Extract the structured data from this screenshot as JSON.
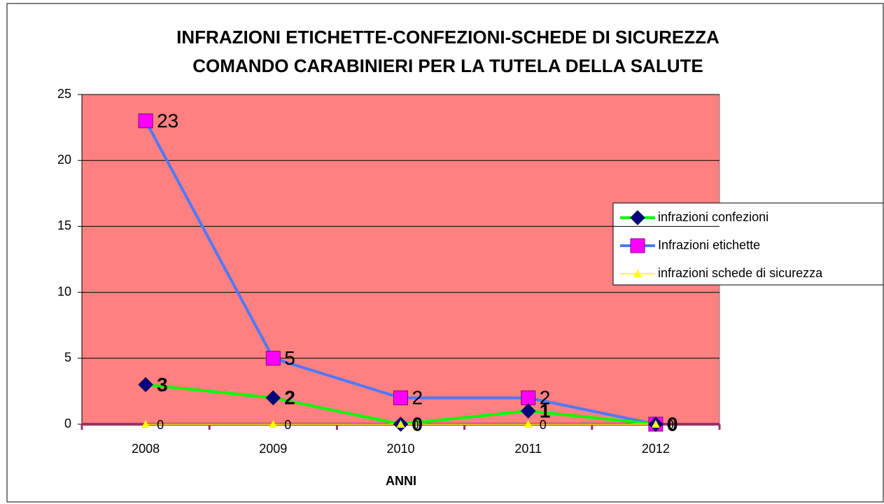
{
  "chart_data": {
    "type": "line",
    "title": [
      "INFRAZIONI ETICHETTE-CONFEZIONI-SCHEDE DI SICUREZZA",
      "COMANDO CARABINIERI PER LA TUTELA DELLA SALUTE"
    ],
    "x_label": "ANNI",
    "categories": [
      "2008",
      "2009",
      "2010",
      "2011",
      "2012"
    ],
    "series": [
      {
        "name": "infrazioni confezioni",
        "color": "#00ff00",
        "marker_color": "#000080",
        "marker": "diamond",
        "values": [
          3,
          2,
          0,
          1,
          0
        ]
      },
      {
        "name": "Infrazioni etichette",
        "color": "#4d79ff",
        "marker_color": "#ff00ff",
        "marker": "square",
        "values": [
          23,
          5,
          2,
          2,
          0
        ]
      },
      {
        "name": "infrazioni schede di sicurezza",
        "color": "#ffff00",
        "marker_color": "#ffff00",
        "marker": "triangle",
        "values": [
          0,
          0,
          0,
          0,
          0
        ]
      }
    ],
    "ylim": [
      0,
      25
    ],
    "yticks": [
      0,
      5,
      10,
      15,
      20,
      25
    ],
    "grid": true,
    "legend": "right"
  }
}
